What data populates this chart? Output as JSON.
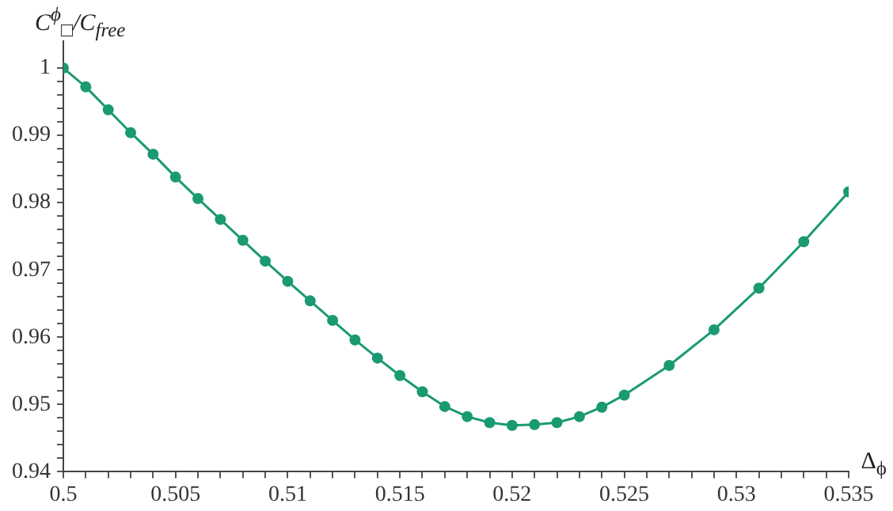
{
  "chart_data": {
    "type": "line",
    "xlabel": "Δ$_{ϕ}$",
    "ylabel": "C$^{ϕ}$$_{□}$/C$_{free}$",
    "marker": "circle",
    "grid": false,
    "x": [
      0.5,
      0.501,
      0.502,
      0.503,
      0.504,
      0.505,
      0.506,
      0.507,
      0.508,
      0.509,
      0.51,
      0.511,
      0.512,
      0.513,
      0.514,
      0.515,
      0.516,
      0.517,
      0.518,
      0.519,
      0.52,
      0.521,
      0.522,
      0.523,
      0.524,
      0.525,
      0.527,
      0.529,
      0.531,
      0.533,
      0.535
    ],
    "series": [
      {
        "color": "#1a9a72",
        "values": [
          1.0,
          0.9972,
          0.9938,
          0.9904,
          0.9872,
          0.9838,
          0.9806,
          0.9775,
          0.9744,
          0.9713,
          0.9683,
          0.9654,
          0.9625,
          0.9596,
          0.9569,
          0.9543,
          0.9519,
          0.9497,
          0.9482,
          0.9473,
          0.9469,
          0.947,
          0.9473,
          0.9482,
          0.9496,
          0.9514,
          0.9558,
          0.9611,
          0.9673,
          0.9742,
          0.9816
        ]
      }
    ],
    "xlim": [
      0.5,
      0.535
    ],
    "xticks": [
      0.5,
      {
        "value": 0.501,
        "label": null
      },
      {
        "value": 0.502,
        "label": null
      },
      {
        "value": 0.503,
        "label": null
      },
      {
        "value": 0.504,
        "label": null
      },
      0.505,
      {
        "value": 0.506,
        "label": null
      },
      {
        "value": 0.507,
        "label": null
      },
      {
        "value": 0.508,
        "label": null
      },
      {
        "value": 0.509,
        "label": null
      },
      0.51,
      {
        "value": 0.511,
        "label": null
      },
      {
        "value": 0.512,
        "label": null
      },
      {
        "value": 0.513,
        "label": null
      },
      {
        "value": 0.514,
        "label": null
      },
      0.515,
      {
        "value": 0.516,
        "label": null
      },
      {
        "value": 0.517,
        "label": null
      },
      {
        "value": 0.518,
        "label": null
      },
      {
        "value": 0.519,
        "label": null
      },
      0.52,
      {
        "value": 0.521,
        "label": null
      },
      {
        "value": 0.522,
        "label": null
      },
      {
        "value": 0.523,
        "label": null
      },
      {
        "value": 0.524,
        "label": null
      },
      0.525,
      {
        "value": 0.526,
        "label": null
      },
      {
        "value": 0.527,
        "label": null
      },
      {
        "value": 0.528,
        "label": null
      },
      {
        "value": 0.529,
        "label": null
      },
      0.53,
      {
        "value": 0.531,
        "label": null
      },
      {
        "value": 0.532,
        "label": null
      },
      {
        "value": 0.533,
        "label": null
      },
      {
        "value": 0.534,
        "label": null
      },
      0.535
    ],
    "ylim": [
      0.94,
      1.004
    ],
    "yticks": [
      0.94,
      {
        "value": 0.942,
        "label": null
      },
      {
        "value": 0.944,
        "label": null
      },
      {
        "value": 0.946,
        "label": null
      },
      {
        "value": 0.948,
        "label": null
      },
      0.95,
      {
        "value": 0.952,
        "label": null
      },
      {
        "value": 0.954,
        "label": null
      },
      {
        "value": 0.956,
        "label": null
      },
      {
        "value": 0.958,
        "label": null
      },
      0.96,
      {
        "value": 0.962,
        "label": null
      },
      {
        "value": 0.964,
        "label": null
      },
      {
        "value": 0.966,
        "label": null
      },
      {
        "value": 0.968,
        "label": null
      },
      0.97,
      {
        "value": 0.972,
        "label": null
      },
      {
        "value": 0.974,
        "label": null
      },
      {
        "value": 0.976,
        "label": null
      },
      {
        "value": 0.978,
        "label": null
      },
      0.98,
      {
        "value": 0.982,
        "label": null
      },
      {
        "value": 0.984,
        "label": null
      },
      {
        "value": 0.986,
        "label": null
      },
      {
        "value": 0.988,
        "label": null
      },
      0.99,
      {
        "value": 0.992,
        "label": null
      },
      {
        "value": 0.994,
        "label": null
      },
      {
        "value": 0.996,
        "label": null
      },
      {
        "value": 0.998,
        "label": null
      },
      1
    ]
  }
}
